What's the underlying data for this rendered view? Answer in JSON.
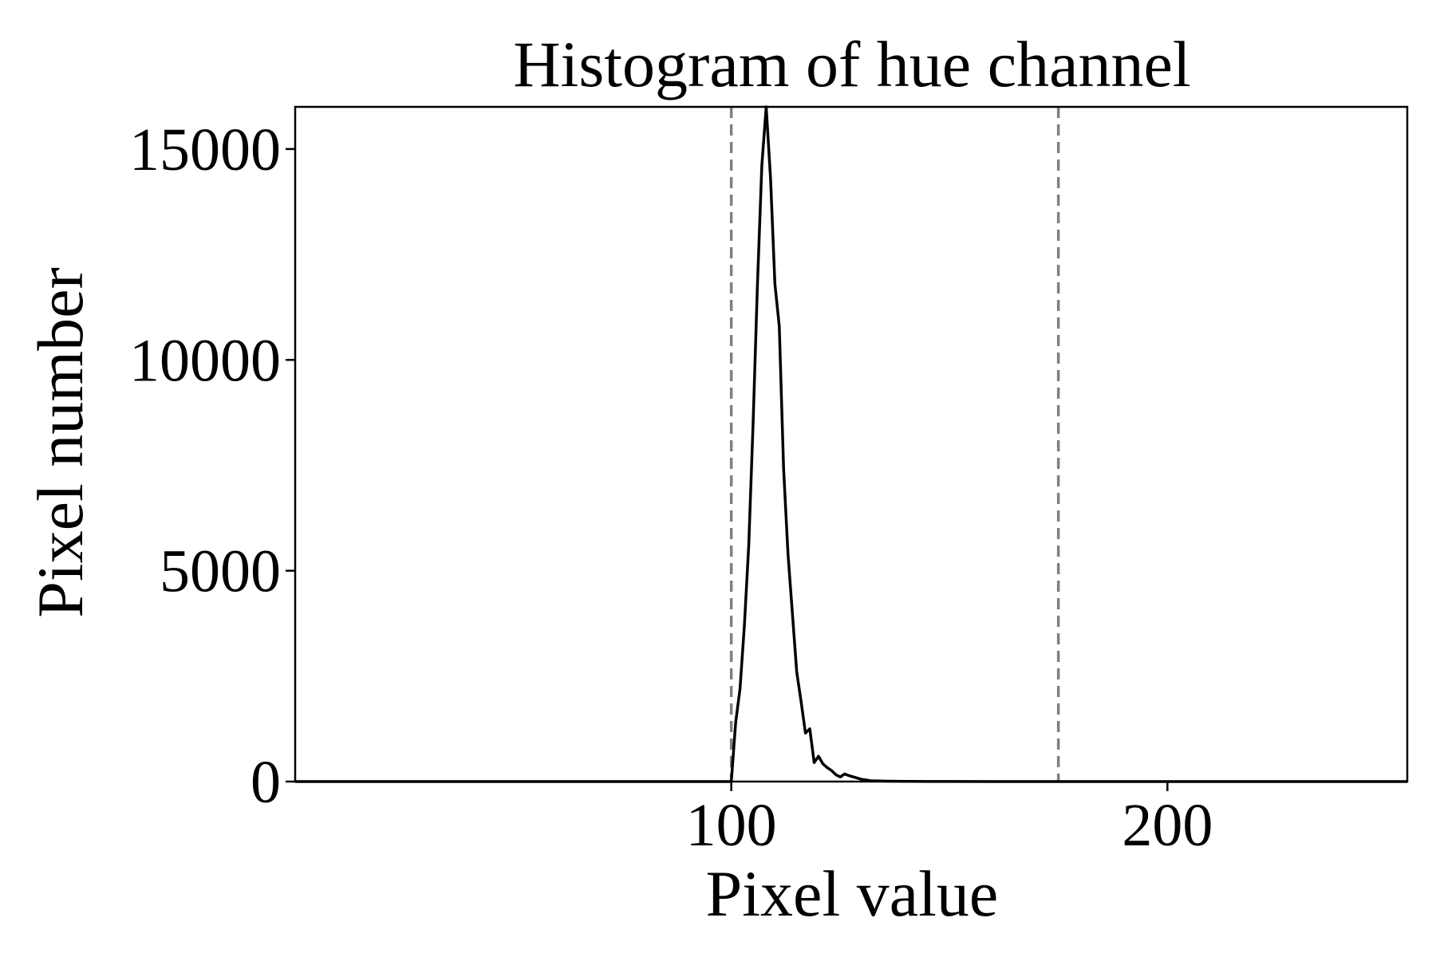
{
  "chart_data": {
    "type": "line",
    "title": "Histogram of hue channel",
    "xlabel": "Pixel value",
    "ylabel": "Pixel number",
    "xlim": [
      0,
      255
    ],
    "ylim": [
      0,
      16000
    ],
    "xticks": [
      100,
      200
    ],
    "yticks": [
      0,
      5000,
      10000,
      15000
    ],
    "x_tick_labels": [
      "100",
      "200"
    ],
    "y_tick_labels": [
      "0",
      "5000",
      "10000",
      "15000"
    ],
    "grid": false,
    "line_color": "#000000",
    "reference_line_color": "#808080",
    "reference_lines_x": [
      100,
      175
    ],
    "series": [
      {
        "x": [
          0,
          99,
          100,
          101,
          102,
          103,
          104,
          105,
          106,
          107,
          108,
          109,
          110,
          111,
          112,
          113,
          114,
          115,
          116,
          117,
          118,
          119,
          120,
          121,
          122,
          123,
          124,
          125,
          126,
          127,
          128,
          129,
          130,
          131,
          132,
          134,
          136,
          138,
          140,
          145,
          150,
          160,
          170,
          180,
          200,
          255
        ],
        "y": [
          0,
          0,
          0,
          1400,
          2200,
          3700,
          5600,
          8500,
          11800,
          14600,
          16000,
          14300,
          11800,
          10800,
          7400,
          5400,
          4000,
          2600,
          1900,
          1150,
          1250,
          450,
          600,
          420,
          330,
          260,
          160,
          110,
          180,
          140,
          110,
          80,
          50,
          35,
          20,
          15,
          10,
          8,
          5,
          3,
          2,
          1,
          0,
          0,
          0,
          0
        ]
      }
    ]
  }
}
